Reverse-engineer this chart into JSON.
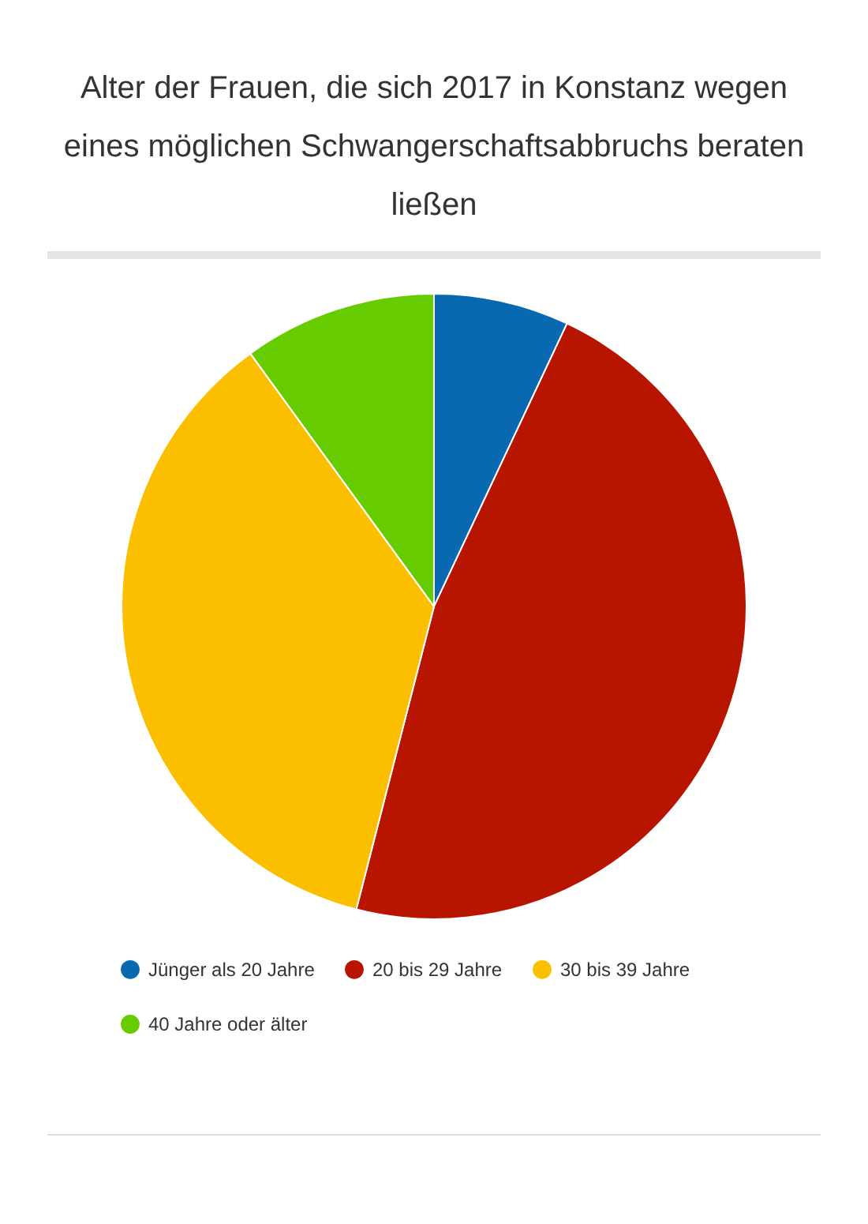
{
  "chart_data": {
    "type": "pie",
    "title": "Alter der Frauen, die sich 2017 in Konstanz wegen eines möglichen Schwangerschaftsabbruchs beraten ließen",
    "categories": [
      "Jünger als 20 Jahre",
      "20 bis 29 Jahre",
      "30 bis 39 Jahre",
      "40 Jahre oder älter"
    ],
    "values": [
      7,
      47,
      36,
      10
    ],
    "colors": [
      "#0868b0",
      "#b71500",
      "#fbbf00",
      "#66cc00"
    ],
    "legend": "bottom"
  }
}
